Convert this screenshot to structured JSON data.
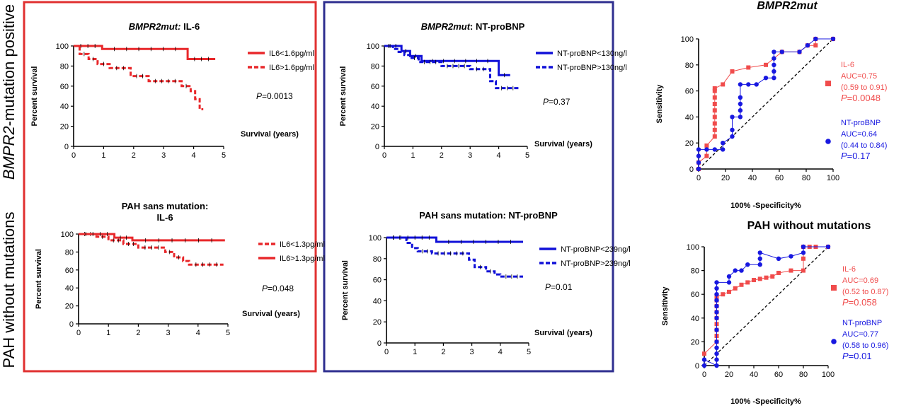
{
  "row_labels": {
    "top": [
      "BMPR2",
      "-mutation positive"
    ],
    "bottom": "PAH without mutations"
  },
  "colors": {
    "red": "#e8282b",
    "blue": "#1010d8",
    "red_frame": "#e03030",
    "blue_frame": "#2e2e8f",
    "roc_red": "#f04c4c",
    "roc_blue": "#1818e0"
  },
  "chart_data": [
    {
      "id": "km_bmpr2_il6",
      "type": "line",
      "subtype": "kaplan-meier",
      "title_italic": "BMPR2mut:",
      "title": " IL-6",
      "xlabel": "Survival (years)",
      "ylabel": "Percent survival",
      "xlim": [
        0,
        5
      ],
      "ylim": [
        0,
        100
      ],
      "xticks": [
        0,
        1,
        2,
        3,
        4,
        5
      ],
      "yticks": [
        0,
        20,
        40,
        60,
        80,
        100
      ],
      "p_prefix": "P",
      "p_value": "=0.0013",
      "series": [
        {
          "name": "IL6<1.6pg/ml",
          "color": "#e8282b",
          "style": "solid",
          "x": [
            0,
            0.95,
            0.95,
            3.8,
            3.8,
            4.72
          ],
          "y": [
            100,
            100,
            97,
            97,
            87,
            87
          ]
        },
        {
          "name": "IL6>1.6pg/ml",
          "color": "#e8282b",
          "style": "dashed",
          "x": [
            0,
            0.2,
            0.2,
            0.5,
            0.5,
            0.8,
            0.8,
            1.2,
            1.2,
            1.9,
            1.9,
            2.5,
            2.5,
            3.6,
            3.6,
            3.9,
            3.9,
            4.05,
            4.05,
            4.2,
            4.2,
            4.32
          ],
          "y": [
            100,
            100,
            92,
            92,
            87,
            87,
            82,
            82,
            78,
            78,
            70,
            70,
            65,
            65,
            60,
            60,
            55,
            55,
            47,
            47,
            37,
            37
          ]
        }
      ]
    },
    {
      "id": "km_bmpr2_ntprobnp",
      "type": "line",
      "subtype": "kaplan-meier",
      "title_italic": "BMPR2mut",
      "title": ": NT-proBNP",
      "xlabel": "Survival (years)",
      "ylabel": "Percent survival",
      "xlim": [
        0,
        5
      ],
      "ylim": [
        0,
        100
      ],
      "xticks": [
        0,
        1,
        2,
        3,
        4,
        5
      ],
      "yticks": [
        0,
        20,
        40,
        60,
        80,
        100
      ],
      "p_prefix": "P",
      "p_value": "=0.37",
      "series": [
        {
          "name": "NT-proBNP<130ng/l",
          "color": "#1010d8",
          "style": "solid",
          "x": [
            0,
            0.6,
            0.6,
            0.9,
            0.9,
            1.3,
            1.3,
            4.0,
            4.0,
            4.4
          ],
          "y": [
            100,
            100,
            95,
            95,
            90,
            90,
            85,
            85,
            71,
            71
          ]
        },
        {
          "name": "NT-proBNP>130ng/l",
          "color": "#1010d8",
          "style": "dashed",
          "x": [
            0,
            0.3,
            0.3,
            0.5,
            0.5,
            0.7,
            0.7,
            0.9,
            0.9,
            1.2,
            1.2,
            2.0,
            2.0,
            3.0,
            3.0,
            3.7,
            3.7,
            3.9,
            3.9,
            4.7
          ],
          "y": [
            100,
            100,
            97,
            97,
            94,
            94,
            91,
            91,
            88,
            88,
            84,
            84,
            80,
            80,
            77,
            77,
            65,
            65,
            58,
            58
          ]
        }
      ]
    },
    {
      "id": "km_sans_il6",
      "type": "line",
      "subtype": "kaplan-meier",
      "title_lines": [
        "PAH sans mutation:",
        "IL-6"
      ],
      "xlabel": "Survival (years)",
      "ylabel": "Percent survival",
      "xlim": [
        0,
        5
      ],
      "ylim": [
        0,
        100
      ],
      "xticks": [
        0,
        1,
        2,
        3,
        4,
        5
      ],
      "yticks": [
        0,
        20,
        40,
        60,
        80,
        100
      ],
      "p_prefix": "P",
      "p_value": "=0.048",
      "series": [
        {
          "name": "IL6<1.3pg/ml",
          "color": "#e8282b",
          "style": "dashed",
          "x": [
            0,
            0.6,
            0.6,
            1.0,
            1.0,
            1.5,
            1.5,
            2.0,
            2.0,
            2.9,
            2.9,
            3.2,
            3.2,
            3.5,
            3.5,
            3.7,
            3.7,
            4.85
          ],
          "y": [
            100,
            100,
            97,
            97,
            93,
            93,
            89,
            89,
            85,
            85,
            80,
            80,
            74,
            74,
            70,
            70,
            66,
            66
          ]
        },
        {
          "name": "IL6>1.3pg/ml",
          "color": "#e8282b",
          "style": "solid",
          "x": [
            0,
            1.2,
            1.2,
            1.8,
            1.8,
            4.9
          ],
          "y": [
            100,
            100,
            96,
            96,
            93,
            93
          ]
        }
      ]
    },
    {
      "id": "km_sans_ntprobnp",
      "type": "line",
      "subtype": "kaplan-meier",
      "title": "PAH sans mutation: NT-proBNP",
      "xlabel": "Survival (years)",
      "ylabel": "Percent survival",
      "xlim": [
        0,
        5
      ],
      "ylim": [
        0,
        100
      ],
      "xticks": [
        0,
        1,
        2,
        3,
        4,
        5
      ],
      "yticks": [
        0,
        20,
        40,
        60,
        80,
        100
      ],
      "p_prefix": "P",
      "p_value": "=0.01",
      "series": [
        {
          "name": "NT-proBNP<239ng/l",
          "color": "#1010d8",
          "style": "solid",
          "x": [
            0,
            1.75,
            1.75,
            4.8
          ],
          "y": [
            100,
            100,
            96,
            96
          ]
        },
        {
          "name": "NT-proBNP>239ng/l",
          "color": "#1010d8",
          "style": "dashed",
          "x": [
            0,
            0.7,
            0.7,
            0.9,
            0.9,
            1.1,
            1.1,
            1.6,
            1.6,
            2.9,
            2.9,
            3.1,
            3.1,
            3.5,
            3.5,
            3.8,
            3.8,
            4.0,
            4.0,
            4.8
          ],
          "y": [
            100,
            100,
            95,
            95,
            90,
            90,
            87,
            87,
            85,
            85,
            79,
            79,
            72,
            72,
            68,
            68,
            65,
            65,
            63,
            63
          ]
        }
      ]
    },
    {
      "id": "roc_bmpr2",
      "type": "scatter",
      "subtype": "roc",
      "title": "BMPR2mut",
      "title_italic": true,
      "xlabel": "100% -Specificity%",
      "ylabel": "Sensitivity",
      "xlim": [
        0,
        100
      ],
      "ylim": [
        0,
        100
      ],
      "xticks": [
        0,
        20,
        40,
        60,
        80,
        100
      ],
      "yticks": [
        0,
        20,
        40,
        60,
        80,
        100
      ],
      "series": [
        {
          "name": "IL-6",
          "color": "#f04c4c",
          "marker": "square",
          "legend": [
            "IL-6",
            "AUC=0.75",
            "(0.59 to 0.91)"
          ],
          "p_prefix": "P",
          "p_value": "=0.0048",
          "x": [
            0,
            0,
            6,
            6,
            12,
            12,
            12,
            12,
            12,
            12,
            12,
            12,
            12,
            18,
            25,
            37,
            50,
            62,
            75,
            81,
            87,
            87,
            100
          ],
          "y": [
            0,
            5,
            10,
            18,
            25,
            30,
            35,
            40,
            45,
            50,
            55,
            60,
            62,
            65,
            75,
            78,
            80,
            90,
            90,
            95,
            95,
            100,
            100
          ]
        },
        {
          "name": "NT-proBNP",
          "color": "#1818e0",
          "marker": "circle",
          "legend": [
            "NT-proBNP",
            "AUC=0.64",
            "(0.44 to 0.84)"
          ],
          "p_prefix": "P",
          "p_value": "=0.17",
          "x": [
            0,
            0,
            0,
            0,
            6,
            12,
            18,
            18,
            25,
            25,
            25,
            31,
            31,
            31,
            31,
            31,
            37,
            43,
            50,
            56,
            56,
            56,
            56,
            56,
            62,
            75,
            81,
            87,
            100
          ],
          "y": [
            0,
            5,
            10,
            15,
            15,
            15,
            15,
            20,
            25,
            30,
            40,
            40,
            45,
            50,
            55,
            65,
            65,
            65,
            70,
            70,
            75,
            80,
            85,
            90,
            90,
            90,
            95,
            100,
            100
          ]
        }
      ]
    },
    {
      "id": "roc_sans",
      "type": "scatter",
      "subtype": "roc",
      "title": "PAH without mutations",
      "title_italic": false,
      "xlabel": "100% -Specificity%",
      "ylabel": "Sensitivity",
      "xlim": [
        0,
        100
      ],
      "ylim": [
        0,
        100
      ],
      "xticks": [
        0,
        20,
        40,
        60,
        80,
        100
      ],
      "yticks": [
        0,
        20,
        40,
        60,
        80,
        100
      ],
      "series": [
        {
          "name": "IL-6",
          "color": "#f04c4c",
          "marker": "square",
          "legend": [
            "IL-6",
            "AUC=0.69",
            "(0.52 to 0.87)"
          ],
          "p_prefix": "P",
          "p_value": "=0.058",
          "x": [
            0,
            10,
            10,
            10,
            10,
            10,
            10,
            10,
            10,
            10,
            15,
            20,
            25,
            30,
            35,
            40,
            45,
            50,
            55,
            60,
            70,
            80,
            80,
            80,
            85,
            90,
            100
          ],
          "y": [
            10,
            20,
            25,
            30,
            35,
            40,
            45,
            50,
            55,
            58,
            60,
            62,
            65,
            68,
            70,
            72,
            73,
            74,
            75,
            78,
            80,
            80,
            90,
            100,
            100,
            100,
            100
          ]
        },
        {
          "name": "NT-proBNP",
          "color": "#1818e0",
          "marker": "circle",
          "legend": [
            "NT-proBNP",
            "AUC=0.77",
            "(0.58 to 0.96)"
          ],
          "p_prefix": "P",
          "p_value": "=0.01",
          "x": [
            0,
            0,
            10,
            10,
            10,
            10,
            10,
            10,
            10,
            10,
            10,
            10,
            10,
            10,
            10,
            20,
            20,
            25,
            30,
            35,
            45,
            45,
            45,
            60,
            70,
            80,
            80,
            80,
            100
          ],
          "y": [
            0,
            5,
            0,
            5,
            10,
            15,
            20,
            30,
            40,
            45,
            50,
            55,
            60,
            65,
            70,
            70,
            75,
            80,
            80,
            85,
            85,
            90,
            95,
            90,
            92,
            95,
            100,
            100,
            100
          ]
        }
      ]
    }
  ]
}
